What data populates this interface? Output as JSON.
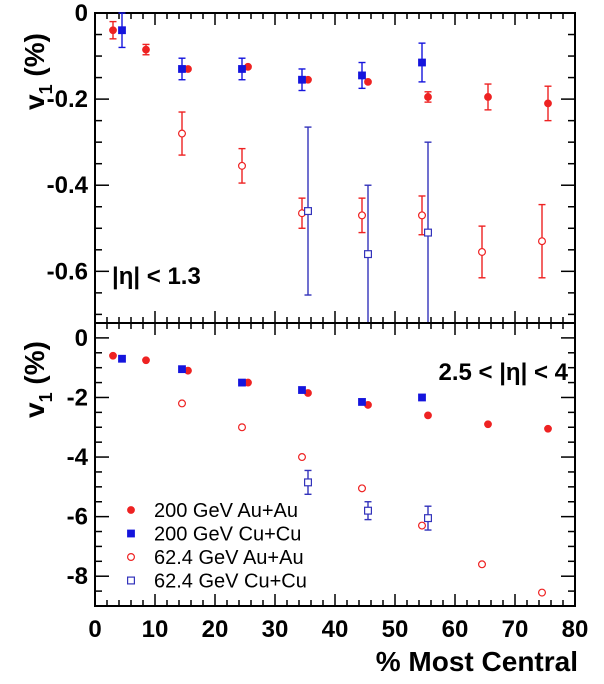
{
  "chart_data": [
    {
      "type": "scatter",
      "panel": "top",
      "ylabel_main": "v",
      "ylabel_sub": "1",
      "ylabel_unit": " (%)",
      "annotation": "|η| < 1.3",
      "xlim": [
        0,
        80
      ],
      "ylim": [
        -0.72,
        0.0
      ],
      "yticks": [
        0,
        -0.2,
        -0.4,
        -0.6
      ],
      "ytick_labels": [
        "0",
        "-0.2",
        "-0.4",
        "-0.6"
      ],
      "series": [
        {
          "name": "200 GeV Au+Au",
          "color": "#ee2222",
          "marker": "circle-filled",
          "points": [
            {
              "x": 3,
              "y": -0.04,
              "err": 0.02
            },
            {
              "x": 8.5,
              "y": -0.085,
              "err": 0.012
            },
            {
              "x": 15.5,
              "y": -0.13,
              "err": 0
            },
            {
              "x": 25.5,
              "y": -0.125,
              "err": 0
            },
            {
              "x": 35.5,
              "y": -0.155,
              "err": 0
            },
            {
              "x": 45.5,
              "y": -0.16,
              "err": 0
            },
            {
              "x": 55.5,
              "y": -0.195,
              "err": 0.012
            },
            {
              "x": 65.5,
              "y": -0.195,
              "err": 0.03
            },
            {
              "x": 75.5,
              "y": -0.21,
              "err": 0.04
            }
          ]
        },
        {
          "name": "200 GeV Cu+Cu",
          "color": "#1515dd",
          "marker": "square-filled",
          "points": [
            {
              "x": 4.5,
              "y": -0.04,
              "err": 0.04
            },
            {
              "x": 14.5,
              "y": -0.13,
              "err": 0.025
            },
            {
              "x": 24.5,
              "y": -0.13,
              "err": 0.025
            },
            {
              "x": 34.5,
              "y": -0.155,
              "err": 0.025
            },
            {
              "x": 44.5,
              "y": -0.145,
              "err": 0.03
            },
            {
              "x": 54.5,
              "y": -0.115,
              "err": 0.045
            }
          ]
        },
        {
          "name": "62.4 GeV Au+Au",
          "color": "#ee2222",
          "marker": "circle-open",
          "points": [
            {
              "x": 14.5,
              "y": -0.28,
              "err": 0.05
            },
            {
              "x": 24.5,
              "y": -0.355,
              "err": 0.04
            },
            {
              "x": 34.5,
              "y": -0.465,
              "err": 0.035
            },
            {
              "x": 44.5,
              "y": -0.47,
              "err": 0.04
            },
            {
              "x": 54.5,
              "y": -0.47,
              "err": 0.045
            },
            {
              "x": 64.5,
              "y": -0.555,
              "err": 0.06
            },
            {
              "x": 74.5,
              "y": -0.53,
              "err": 0.085
            }
          ]
        },
        {
          "name": "62.4 GeV Cu+Cu",
          "color": "#3333bb",
          "marker": "square-open",
          "points": [
            {
              "x": 35.5,
              "y": -0.46,
              "err": 0.195
            },
            {
              "x": 45.5,
              "y": -0.56,
              "err": 0.16
            },
            {
              "x": 55.5,
              "y": -0.51,
              "err": 0.21
            }
          ]
        }
      ]
    },
    {
      "type": "scatter",
      "panel": "bottom",
      "ylabel_main": "v",
      "ylabel_sub": "1",
      "ylabel_unit": " (%)",
      "annotation": "2.5 < |η| < 4",
      "xlabel": "% Most Central",
      "xlim": [
        0,
        80
      ],
      "ylim": [
        -9.0,
        0.5
      ],
      "xticks": [
        0,
        10,
        20,
        30,
        40,
        50,
        60,
        70,
        80
      ],
      "xtick_labels": [
        "0",
        "10",
        "20",
        "30",
        "40",
        "50",
        "60",
        "70",
        "80"
      ],
      "yticks": [
        0,
        -2,
        -4,
        -6,
        -8
      ],
      "ytick_labels": [
        "0",
        "-2",
        "-4",
        "-6",
        "-8"
      ],
      "series": [
        {
          "name": "200 GeV Au+Au",
          "color": "#ee2222",
          "marker": "circle-filled",
          "points": [
            {
              "x": 3,
              "y": -0.6,
              "err": 0
            },
            {
              "x": 8.5,
              "y": -0.75,
              "err": 0
            },
            {
              "x": 15.5,
              "y": -1.1,
              "err": 0
            },
            {
              "x": 25.5,
              "y": -1.5,
              "err": 0
            },
            {
              "x": 35.5,
              "y": -1.85,
              "err": 0
            },
            {
              "x": 45.5,
              "y": -2.25,
              "err": 0
            },
            {
              "x": 55.5,
              "y": -2.6,
              "err": 0
            },
            {
              "x": 65.5,
              "y": -2.9,
              "err": 0
            },
            {
              "x": 75.5,
              "y": -3.05,
              "err": 0
            }
          ]
        },
        {
          "name": "200 GeV Cu+Cu",
          "color": "#1515dd",
          "marker": "square-filled",
          "points": [
            {
              "x": 4.5,
              "y": -0.7,
              "err": 0
            },
            {
              "x": 14.5,
              "y": -1.05,
              "err": 0
            },
            {
              "x": 24.5,
              "y": -1.5,
              "err": 0
            },
            {
              "x": 34.5,
              "y": -1.75,
              "err": 0
            },
            {
              "x": 44.5,
              "y": -2.15,
              "err": 0
            },
            {
              "x": 54.5,
              "y": -2.0,
              "err": 0
            }
          ]
        },
        {
          "name": "62.4 GeV Au+Au",
          "color": "#ee2222",
          "marker": "circle-open",
          "points": [
            {
              "x": 14.5,
              "y": -2.2,
              "err": 0
            },
            {
              "x": 24.5,
              "y": -3.0,
              "err": 0
            },
            {
              "x": 34.5,
              "y": -4.0,
              "err": 0
            },
            {
              "x": 44.5,
              "y": -5.05,
              "err": 0
            },
            {
              "x": 54.5,
              "y": -6.3,
              "err": 0
            },
            {
              "x": 64.5,
              "y": -7.6,
              "err": 0
            },
            {
              "x": 74.5,
              "y": -8.55,
              "err": 0
            }
          ]
        },
        {
          "name": "62.4 GeV Cu+Cu",
          "color": "#3333bb",
          "marker": "square-open",
          "points": [
            {
              "x": 35.5,
              "y": -4.85,
              "err": 0.4
            },
            {
              "x": 45.5,
              "y": -5.8,
              "err": 0.3
            },
            {
              "x": 55.5,
              "y": -6.05,
              "err": 0.4
            }
          ]
        }
      ]
    }
  ],
  "legend": {
    "placement": "bottom-left of lower panel",
    "entries": [
      {
        "label": "200 GeV Au+Au",
        "color": "#ee2222",
        "marker": "circle-filled"
      },
      {
        "label": "200 GeV Cu+Cu",
        "color": "#1515dd",
        "marker": "square-filled"
      },
      {
        "label": "62.4 GeV Au+Au",
        "color": "#ee2222",
        "marker": "circle-open"
      },
      {
        "label": "62.4 GeV Cu+Cu",
        "color": "#3333bb",
        "marker": "square-open"
      }
    ]
  }
}
